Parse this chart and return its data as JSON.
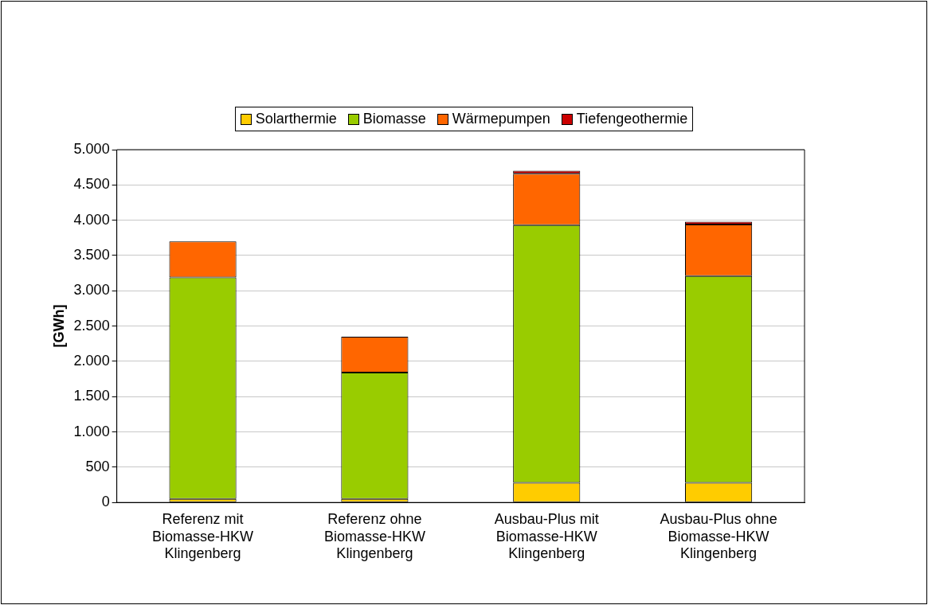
{
  "chart_data": {
    "type": "bar",
    "stacked": true,
    "ylabel": "[GWh]",
    "categories": [
      "Referenz mit Biomasse-HKW Klingenberg",
      "Referenz ohne Biomasse-HKW Klingenberg",
      "Ausbau-Plus mit Biomasse-HKW Klingenberg",
      "Ausbau-Plus ohne Biomasse-HKW Klingenberg"
    ],
    "series": [
      {
        "name": "Solarthermie",
        "color": "#ffcc00",
        "values": [
          50,
          50,
          280,
          280
        ]
      },
      {
        "name": "Biomasse",
        "color": "#99cc00",
        "values": [
          3140,
          1790,
          3650,
          2930
        ]
      },
      {
        "name": "Wärmepumpen",
        "color": "#ff6600",
        "values": [
          510,
          510,
          730,
          730
        ]
      },
      {
        "name": "Tiefengeothermie",
        "color": "#cc0000",
        "values": [
          0,
          0,
          40,
          40
        ]
      }
    ],
    "ylim": [
      0,
      5000
    ],
    "yticks": [
      {
        "value": 0,
        "label": "0"
      },
      {
        "value": 500,
        "label": "500"
      },
      {
        "value": 1000,
        "label": "1.000"
      },
      {
        "value": 1500,
        "label": "1.500"
      },
      {
        "value": 2000,
        "label": "2.000"
      },
      {
        "value": 2500,
        "label": "2.500"
      },
      {
        "value": 3000,
        "label": "3.000"
      },
      {
        "value": 3500,
        "label": "3.500"
      },
      {
        "value": 4000,
        "label": "4.000"
      },
      {
        "value": 4500,
        "label": "4.500"
      },
      {
        "value": 5000,
        "label": "5.000"
      }
    ],
    "grid": "y",
    "legend": "top"
  }
}
